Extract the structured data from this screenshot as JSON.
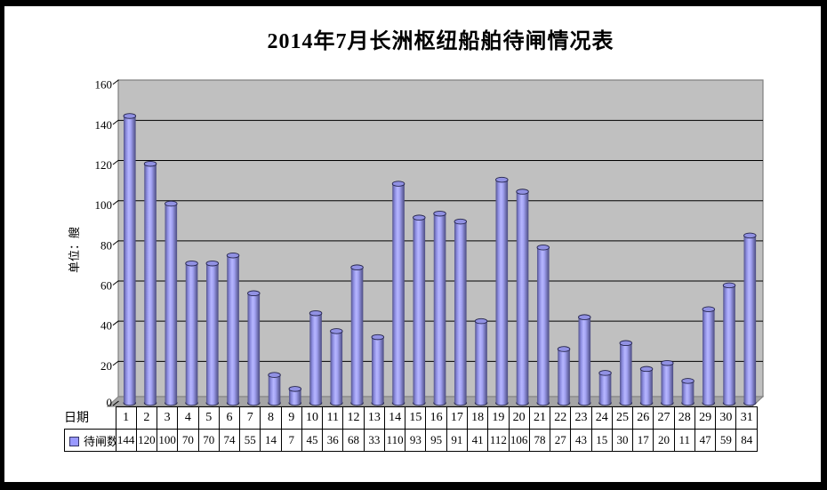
{
  "window": {
    "background": "#ffffff",
    "frame_color": "#000000"
  },
  "chart_data": {
    "type": "bar",
    "style": "3d-cylinder",
    "title": "2014年7月长洲枢纽船舶待闸情况表",
    "xlabel": "日期",
    "ylabel": "单位：艘",
    "categories": [
      1,
      2,
      3,
      4,
      5,
      6,
      7,
      8,
      9,
      10,
      11,
      12,
      13,
      14,
      15,
      16,
      17,
      18,
      19,
      20,
      21,
      22,
      23,
      24,
      25,
      26,
      27,
      28,
      29,
      30,
      31
    ],
    "series": [
      {
        "name": "待闸数",
        "values": [
          144,
          120,
          100,
          70,
          70,
          74,
          55,
          14,
          7,
          45,
          36,
          68,
          33,
          110,
          93,
          95,
          91,
          41,
          112,
          106,
          78,
          27,
          43,
          15,
          30,
          17,
          20,
          11,
          47,
          59,
          84
        ]
      }
    ],
    "ylim": [
      0,
      160
    ],
    "ytick_step": 20,
    "grid": true,
    "legend_position": "data-table-left",
    "colors": {
      "bar": "#9999ff",
      "bar_top": "#9191e3",
      "bar_edge_dark": "#50508a",
      "outline": "#26264d",
      "wall": "#c0c0c0",
      "floor": "#a5a5a5",
      "gridline": "#000000",
      "wall_border": "#7f7f7f"
    }
  }
}
